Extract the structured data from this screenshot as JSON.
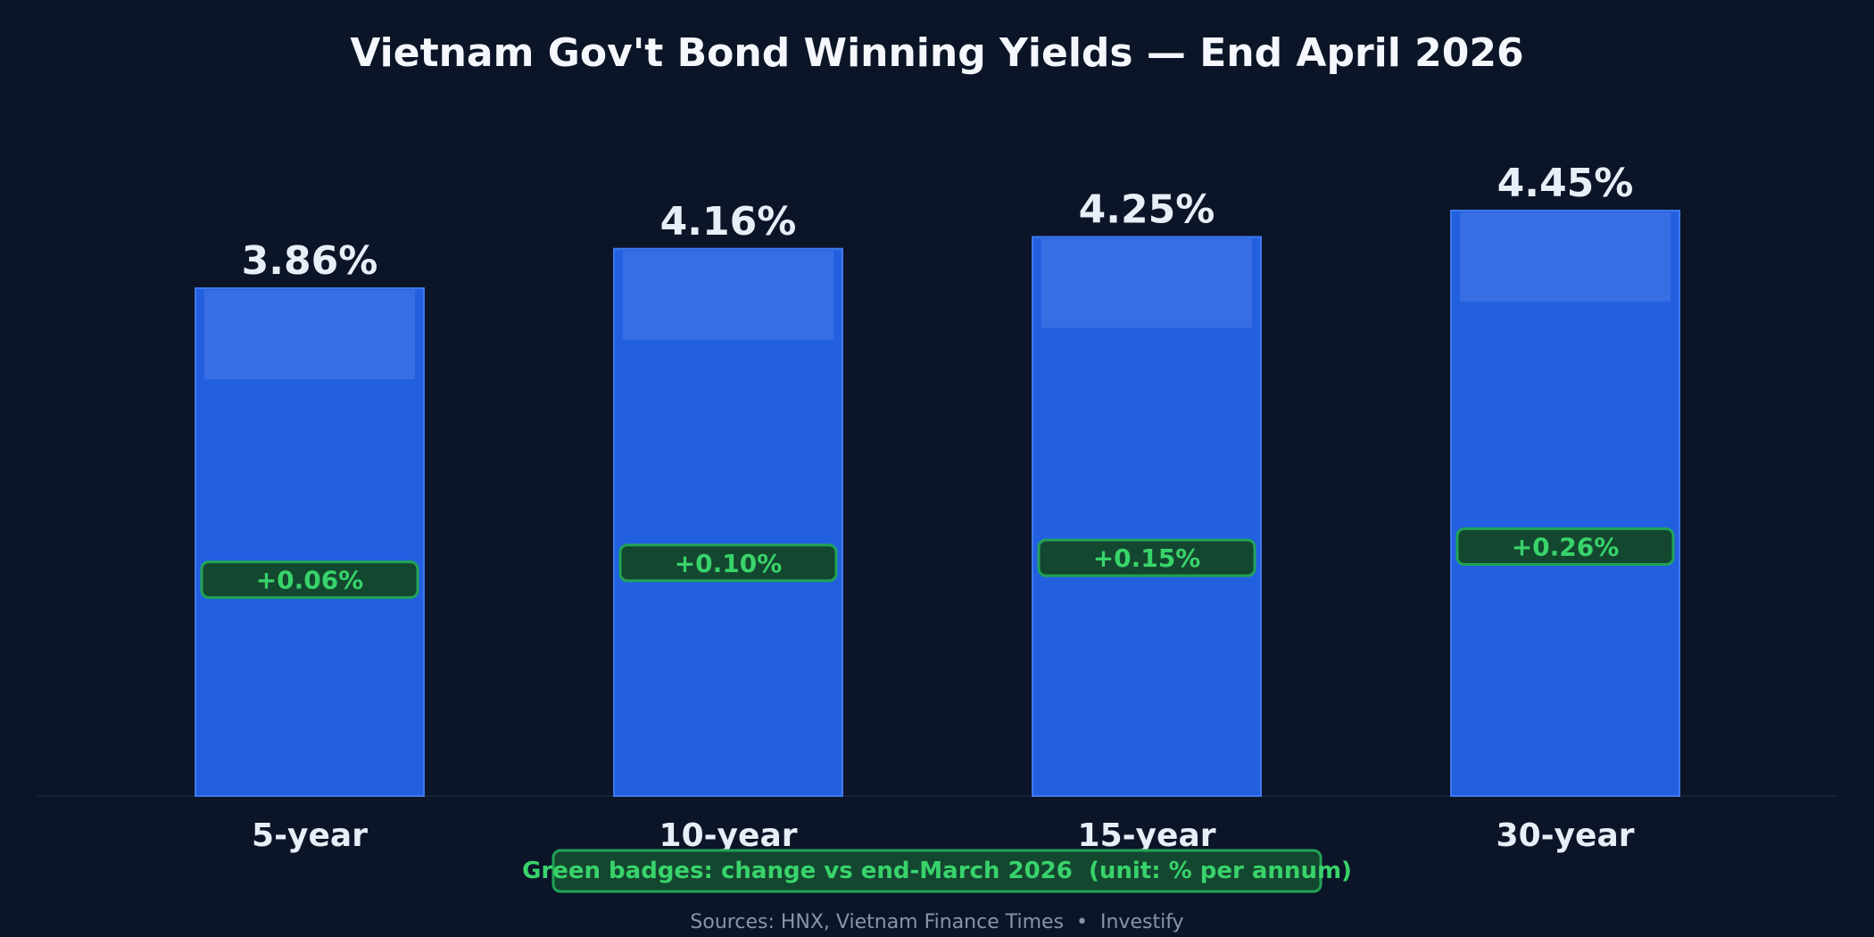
{
  "chart_data": {
    "type": "bar",
    "title": "Vietnam Gov't Bond Winning Yields — End April 2026",
    "xlabel": "",
    "ylabel": "",
    "categories": [
      "5-year",
      "10-year",
      "15-year",
      "30-year"
    ],
    "values": [
      3.86,
      4.16,
      4.25,
      4.45
    ],
    "value_labels": [
      "3.86%",
      "4.16%",
      "4.25%",
      "4.45%"
    ],
    "changes": [
      0.06,
      0.1,
      0.15,
      0.26
    ],
    "change_labels": [
      "+0.06%",
      "+0.10%",
      "+0.15%",
      "+0.26%"
    ],
    "ylim": [
      0,
      4.45
    ],
    "grid": false,
    "legend": "none",
    "note": "Green badges: change vs end-March 2026  (unit: % per annum)",
    "source": "Sources: HNX, Vietnam Finance Times  •  Investify"
  },
  "colors": {
    "background": "#0b1527",
    "bar": "#2360e0",
    "bar_edge": "#3d79ea",
    "bar_highlight": "#3a6fe3",
    "text": "#e8eef7",
    "badge_fill": "#14472f",
    "badge_stroke": "#21a356",
    "badge_text": "#38d36b",
    "source_text": "#8a94a6",
    "baseline": "#1a2640"
  }
}
